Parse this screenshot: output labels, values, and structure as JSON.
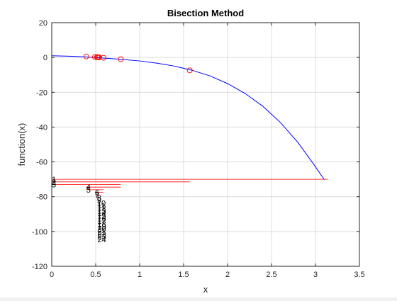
{
  "chart_data": {
    "type": "line",
    "title": "Bisection Method",
    "xlabel": "x",
    "ylabel": "function(x)",
    "xlim": [
      0,
      3.5
    ],
    "ylim": [
      -120,
      20
    ],
    "grid": true,
    "xticks": [
      "0",
      "0.5",
      "1",
      "1.5",
      "2",
      "2.5",
      "3",
      "3.5"
    ],
    "xtick_values": [
      0,
      0.5,
      1,
      1.5,
      2,
      2.5,
      3,
      3.5
    ],
    "yticks": [
      "20",
      "0",
      "-20",
      "-40",
      "-60",
      "-80",
      "-100",
      "-120"
    ],
    "ytick_values": [
      20,
      0,
      -20,
      -40,
      -60,
      -80,
      -100,
      -120
    ],
    "curve": {
      "color": "#0000ff",
      "x": [
        0,
        0.2,
        0.4,
        0.6,
        0.8,
        1.0,
        1.2,
        1.4,
        1.6,
        1.8,
        2.0,
        2.2,
        2.4,
        2.6,
        2.8,
        3.0,
        3.1
      ],
      "y": [
        1.0,
        0.7,
        0.3,
        -0.4,
        -1.1,
        -2.0,
        -3.3,
        -5.0,
        -7.4,
        -10.6,
        -15.0,
        -20.7,
        -28.0,
        -37.3,
        -48.8,
        -62.8,
        -70.2
      ]
    },
    "midpoints": {
      "color": "#ff0000",
      "marker": "circle",
      "x": [
        1.57,
        0.785,
        0.393,
        0.589,
        0.491,
        0.54,
        0.515,
        0.528,
        0.522,
        0.519
      ],
      "y": [
        -7.4,
        -1.0,
        0.6,
        -0.2,
        0.3,
        0.1,
        0.2,
        0.15,
        0.18,
        0.17
      ]
    },
    "intervals": {
      "color": "#ff0000",
      "items": [
        {
          "label": "1",
          "x1": 0,
          "x2": 3.14,
          "y": -70
        },
        {
          "label": "2",
          "x1": 0,
          "x2": 1.57,
          "y": -71.5
        },
        {
          "label": "3",
          "x1": 0,
          "x2": 0.785,
          "y": -73
        },
        {
          "label": "4",
          "x1": 0.393,
          "x2": 0.785,
          "y": -74.5
        },
        {
          "label": "5",
          "x1": 0.393,
          "x2": 0.589,
          "y": -76
        },
        {
          "label": "6",
          "x1": 0.491,
          "x2": 0.589,
          "y": -77.5
        },
        {
          "label": "7",
          "x1": 0.491,
          "x2": 0.54,
          "y": -79
        },
        {
          "label": "8",
          "x1": 0.515,
          "x2": 0.54,
          "y": -80.5
        },
        {
          "label": "9",
          "x1": 0.515,
          "x2": 0.528,
          "y": -82
        },
        {
          "label": "10",
          "x1": 0.515,
          "x2": 0.522,
          "y": -83.5
        },
        {
          "label": "11",
          "x1": 0.519,
          "x2": 0.522,
          "y": -85
        },
        {
          "label": "12",
          "x1": 0.519,
          "x2": 0.521,
          "y": -86.5
        },
        {
          "label": "13",
          "x1": 0.519,
          "x2": 0.52,
          "y": -88
        },
        {
          "label": "14",
          "x1": 0.5195,
          "x2": 0.52,
          "y": -89.5
        },
        {
          "label": "15",
          "x1": 0.5195,
          "x2": 0.5198,
          "y": -91
        },
        {
          "label": "16",
          "x1": 0.5196,
          "x2": 0.5198,
          "y": -92.5
        },
        {
          "label": "17",
          "x1": 0.5196,
          "x2": 0.5197,
          "y": -94
        },
        {
          "label": "18",
          "x1": 0.5196,
          "x2": 0.5197,
          "y": -95.5
        },
        {
          "label": "19",
          "x1": 0.5196,
          "x2": 0.5197,
          "y": -97
        },
        {
          "label": "20",
          "x1": 0.5196,
          "x2": 0.5197,
          "y": -98.5
        },
        {
          "label": "21",
          "x1": 0.5196,
          "x2": 0.5197,
          "y": -100
        },
        {
          "label": "22",
          "x1": 0.5196,
          "x2": 0.5197,
          "y": -101.5
        },
        {
          "label": "23",
          "x1": 0.5196,
          "x2": 0.5197,
          "y": -103
        },
        {
          "label": "24",
          "x1": 0.5196,
          "x2": 0.5197,
          "y": -104.5
        }
      ]
    }
  }
}
